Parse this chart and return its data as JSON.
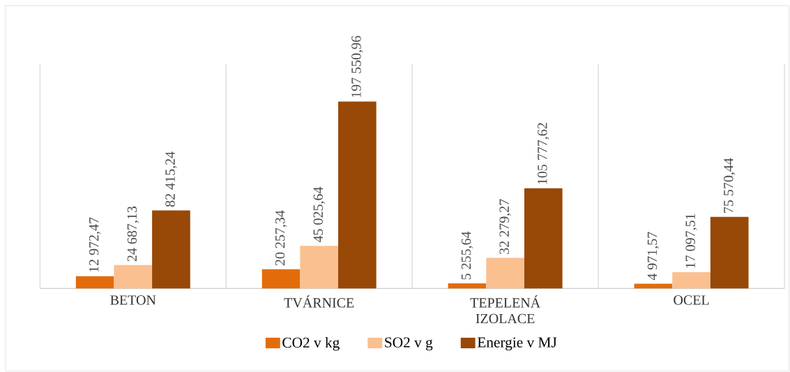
{
  "chart_data": {
    "type": "bar",
    "categories": [
      "BETON",
      "TVÁRNICE",
      "TEPELENÁ IZOLACE",
      "OCEL"
    ],
    "series": [
      {
        "name": "CO2 v kg",
        "color": "#e36c0a",
        "values": [
          12972.47,
          20257.34,
          5255.64,
          4971.57
        ],
        "value_labels": [
          "12 972,47",
          "20 257,34",
          "5 255,64",
          "4 971,57"
        ]
      },
      {
        "name": "SO2 v g",
        "color": "#fac090",
        "values": [
          24687.13,
          45025.64,
          32279.27,
          17097.51
        ],
        "value_labels": [
          "24 687,13",
          "45 025,64",
          "32 279,27",
          "17 097,51"
        ]
      },
      {
        "name": "Energie v MJ",
        "color": "#984807",
        "values": [
          82415.24,
          197550.96,
          105777.62,
          75570.44
        ],
        "value_labels": [
          "82 415,24",
          "197 550,96",
          "105 777,62",
          "75 570,44"
        ]
      }
    ],
    "grid": "x",
    "legend": "bottom",
    "tick_labels": "x"
  }
}
